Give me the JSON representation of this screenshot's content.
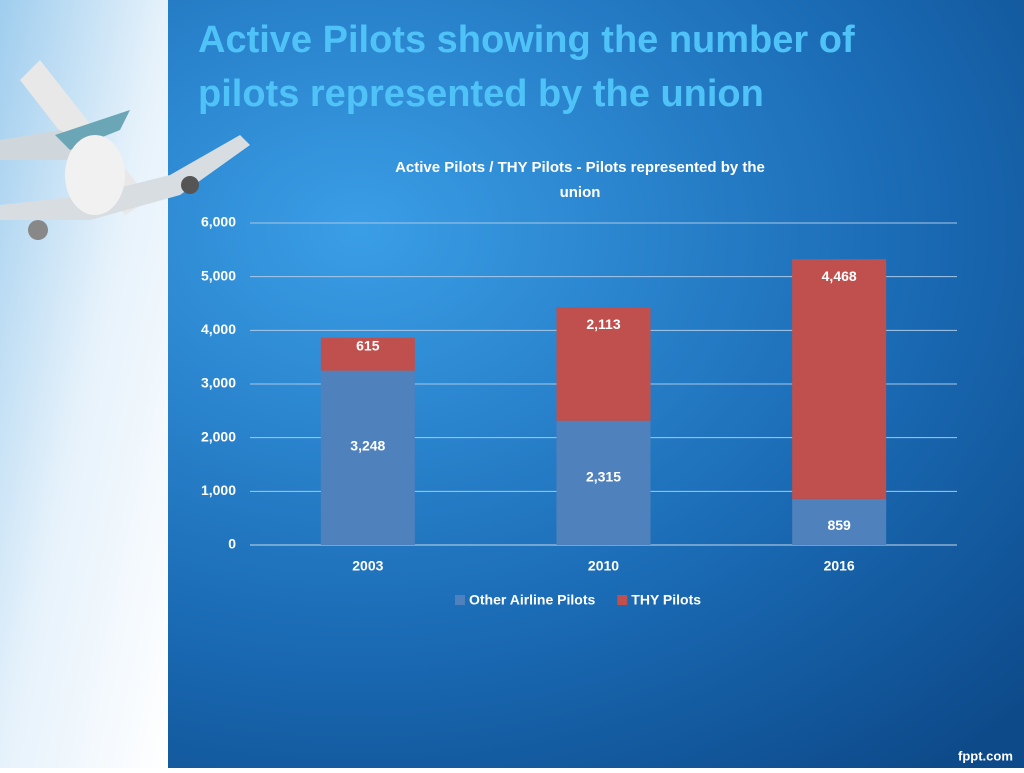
{
  "slide": {
    "title": "Active Pilots showing the number of pilots represented by the union",
    "footer": "fppt.com"
  },
  "chart_data": {
    "type": "stacked_bar",
    "title": "Active Pilots / THY Pilots - Pilots represented by  the union",
    "categories": [
      "2003",
      "2010",
      "2016"
    ],
    "series": [
      {
        "name": "Other Airline Pilots",
        "color": "#4f81bd",
        "values": [
          3248,
          2315,
          859
        ],
        "value_labels": [
          "3,248",
          "2,315",
          "859"
        ]
      },
      {
        "name": "THY Pilots",
        "color": "#c0504d",
        "values": [
          615,
          2113,
          4468
        ],
        "value_labels": [
          "615",
          "2,113",
          "4,468"
        ]
      }
    ],
    "ylim": [
      0,
      6000
    ],
    "yticks": [
      0,
      {
        "value": 1000,
        "label": "1,000"
      },
      {
        "value": 2000,
        "label": "2,000"
      },
      {
        "value": 3000,
        "label": "3,000"
      },
      {
        "value": 4000,
        "label": "4,000"
      },
      {
        "value": 5000,
        "label": "5,000"
      },
      {
        "value": 6000,
        "label": "6,000"
      }
    ],
    "grid": true,
    "legend": "bottom"
  }
}
